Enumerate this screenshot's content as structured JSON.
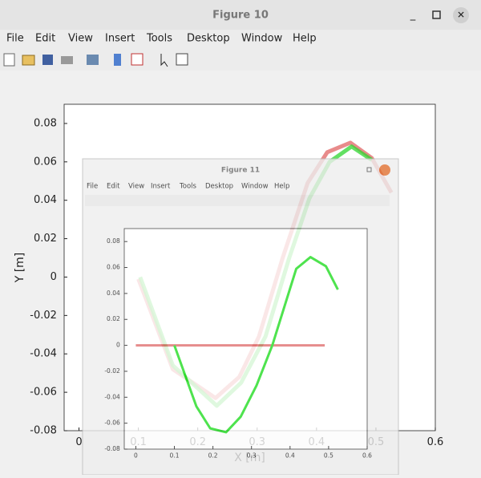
{
  "window": {
    "title": "Figure 10",
    "menu": [
      "File",
      "Edit",
      "View",
      "Insert",
      "Tools",
      "Desktop",
      "Window",
      "Help"
    ]
  },
  "inner_window": {
    "title": "Figure 11",
    "menu": [
      "File",
      "Edit",
      "View",
      "Insert",
      "Tools",
      "Desktop",
      "Window",
      "Help"
    ]
  },
  "chart_data": [
    {
      "type": "line",
      "xlabel": "X [m]",
      "ylabel": "Y [m]",
      "xlim": [
        -0.025,
        0.6
      ],
      "ylim": [
        -0.08,
        0.09
      ],
      "xticks": [
        0,
        0.1,
        0.2,
        0.3,
        0.4,
        0.5,
        0.6
      ],
      "yticks": [
        -0.08,
        -0.06,
        -0.04,
        -0.02,
        0,
        0.02,
        0.04,
        0.06,
        0.08
      ],
      "series": [
        {
          "color": "#e06464",
          "x": [
            0.1,
            0.158,
            0.23,
            0.27,
            0.303,
            0.343,
            0.385,
            0.418,
            0.457,
            0.493,
            0.526
          ],
          "values": [
            -0.001,
            -0.048,
            -0.063,
            -0.052,
            -0.031,
            0.01,
            0.049,
            0.065,
            0.07,
            0.062,
            0.044
          ]
        },
        {
          "color": "#2fd62f",
          "x": [
            0.103,
            0.158,
            0.232,
            0.273,
            0.314,
            0.354,
            0.388,
            0.422,
            0.459,
            0.493
          ],
          "values": [
            0,
            -0.046,
            -0.067,
            -0.055,
            -0.031,
            0.01,
            0.041,
            0.06,
            0.068,
            0.061
          ]
        }
      ]
    },
    {
      "type": "line",
      "xlim": [
        -0.03,
        0.6
      ],
      "ylim": [
        -0.08,
        0.09
      ],
      "xticks": [
        0,
        0.1,
        0.2,
        0.3,
        0.4,
        0.5,
        0.6
      ],
      "yticks": [
        -0.08,
        -0.06,
        -0.04,
        -0.02,
        0,
        0.02,
        0.04,
        0.06,
        0.08
      ],
      "series": [
        {
          "color": "#e07070",
          "x": [
            0,
            0.49
          ],
          "values": [
            0,
            0
          ]
        },
        {
          "color": "#22dd22",
          "x": [
            0.1,
            0.157,
            0.193,
            0.234,
            0.272,
            0.313,
            0.354,
            0.416,
            0.453,
            0.493,
            0.524
          ],
          "values": [
            0,
            -0.047,
            -0.064,
            -0.067,
            -0.055,
            -0.031,
            0,
            0.059,
            0.068,
            0.061,
            0.043
          ]
        }
      ]
    }
  ]
}
